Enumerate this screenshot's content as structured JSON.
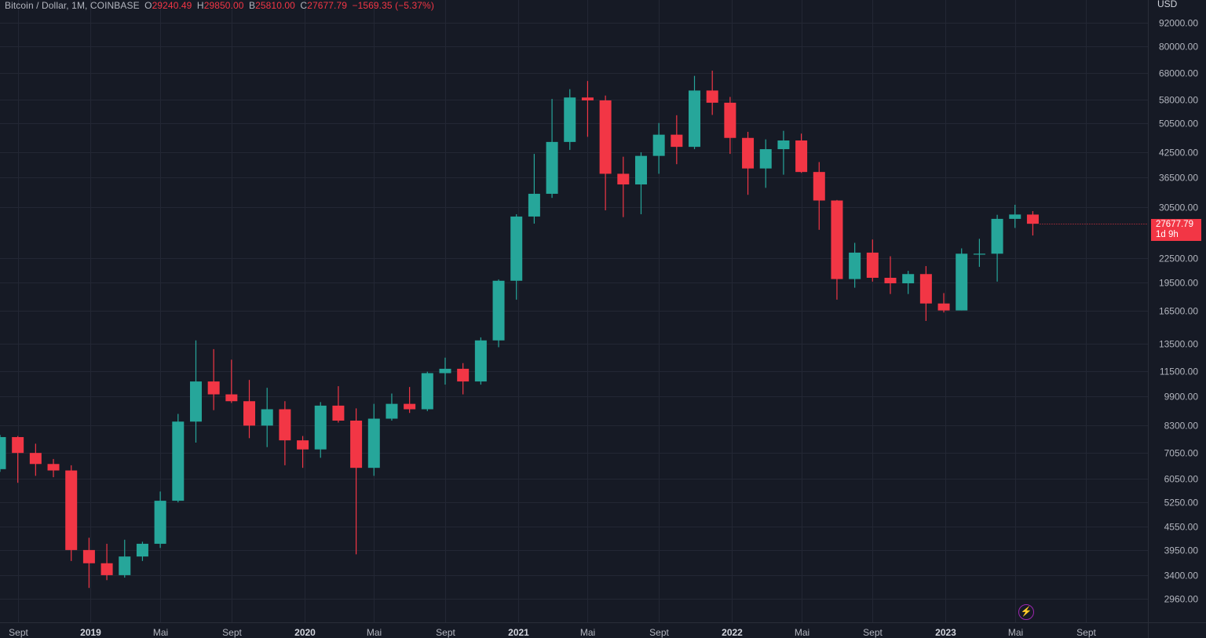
{
  "legend": {
    "symbol": "Bitcoin / Dollar, 1M, COINBASE",
    "open_label": "O",
    "open": "29240.49",
    "high_label": "H",
    "high": "29850.00",
    "low_label": "B",
    "low": "25810.00",
    "close_label": "C",
    "close": "27677.79",
    "change": "−1569.35 (−5.37%)"
  },
  "axis": {
    "unit": "USD"
  },
  "last_price": {
    "value": "27677.79",
    "countdown": "1d 9h"
  },
  "colors": {
    "up": "#26a69a",
    "down": "#f23645",
    "background": "#161a25",
    "grid": "#232734",
    "text": "#b2b5be",
    "accent": "#9c27b0"
  },
  "icons": {
    "bottom_marker": "lightning-icon"
  },
  "chart_data": {
    "type": "candlestick",
    "scale": "log",
    "grid": true,
    "y_ticks": [
      2960,
      3400,
      3950,
      4550,
      5250,
      6050,
      7050,
      8300,
      9900,
      11500,
      13500,
      16500,
      19500,
      22500,
      30500,
      36500,
      42500,
      50500,
      58000,
      68000,
      80000,
      92000
    ],
    "y_tick_labels": [
      "2960.00",
      "3400.00",
      "3950.00",
      "4550.00",
      "5250.00",
      "6050.00",
      "7050.00",
      "8300.00",
      "9900.00",
      "11500.00",
      "13500.00",
      "16500.00",
      "19500.00",
      "22500.00",
      "30500.00",
      "36500.00",
      "42500.00",
      "50500.00",
      "58000.00",
      "68000.00",
      "80000.00",
      "92000.00"
    ],
    "x_labels": [
      {
        "index": 1,
        "text": "Sept",
        "bold": false
      },
      {
        "index": 5,
        "text": "2019",
        "bold": true
      },
      {
        "index": 9,
        "text": "Mai",
        "bold": false
      },
      {
        "index": 13,
        "text": "Sept",
        "bold": false
      },
      {
        "index": 17,
        "text": "2020",
        "bold": true
      },
      {
        "index": 21,
        "text": "Mai",
        "bold": false
      },
      {
        "index": 25,
        "text": "Sept",
        "bold": false
      },
      {
        "index": 29,
        "text": "2021",
        "bold": true
      },
      {
        "index": 33,
        "text": "Mai",
        "bold": false
      },
      {
        "index": 37,
        "text": "Sept",
        "bold": false
      },
      {
        "index": 41,
        "text": "2022",
        "bold": true
      },
      {
        "index": 45,
        "text": "Mai",
        "bold": false
      },
      {
        "index": 49,
        "text": "Sept",
        "bold": false
      },
      {
        "index": 53,
        "text": "2023",
        "bold": true
      },
      {
        "index": 57,
        "text": "Mai",
        "bold": false
      },
      {
        "index": 61,
        "text": "Sept",
        "bold": false
      }
    ],
    "candles": [
      {
        "o": 6400,
        "h": 7850,
        "l": 6300,
        "c": 7750
      },
      {
        "o": 7750,
        "h": 7800,
        "l": 5900,
        "c": 7050
      },
      {
        "o": 7050,
        "h": 7450,
        "l": 6150,
        "c": 6600
      },
      {
        "o": 6600,
        "h": 6800,
        "l": 6100,
        "c": 6350
      },
      {
        "o": 6350,
        "h": 6550,
        "l": 3700,
        "c": 3950
      },
      {
        "o": 3950,
        "h": 4250,
        "l": 3150,
        "c": 3650
      },
      {
        "o": 3650,
        "h": 4100,
        "l": 3300,
        "c": 3400
      },
      {
        "o": 3400,
        "h": 4200,
        "l": 3350,
        "c": 3800
      },
      {
        "o": 3800,
        "h": 4150,
        "l": 3700,
        "c": 4100
      },
      {
        "o": 4100,
        "h": 5600,
        "l": 4000,
        "c": 5300
      },
      {
        "o": 5300,
        "h": 8900,
        "l": 5250,
        "c": 8500
      },
      {
        "o": 8500,
        "h": 13800,
        "l": 7500,
        "c": 10800
      },
      {
        "o": 10800,
        "h": 13100,
        "l": 9100,
        "c": 10000
      },
      {
        "o": 10000,
        "h": 12300,
        "l": 9500,
        "c": 9600
      },
      {
        "o": 9600,
        "h": 10900,
        "l": 7700,
        "c": 8300
      },
      {
        "o": 8300,
        "h": 10400,
        "l": 7300,
        "c": 9150
      },
      {
        "o": 9150,
        "h": 9600,
        "l": 6550,
        "c": 7600
      },
      {
        "o": 7600,
        "h": 7800,
        "l": 6450,
        "c": 7200
      },
      {
        "o": 7200,
        "h": 9550,
        "l": 6850,
        "c": 9350
      },
      {
        "o": 9350,
        "h": 10500,
        "l": 8450,
        "c": 8550
      },
      {
        "o": 8550,
        "h": 9200,
        "l": 3850,
        "c": 6450
      },
      {
        "o": 6450,
        "h": 9450,
        "l": 6150,
        "c": 8650
      },
      {
        "o": 8650,
        "h": 10050,
        "l": 8550,
        "c": 9450
      },
      {
        "o": 9450,
        "h": 10450,
        "l": 8950,
        "c": 9150
      },
      {
        "o": 9150,
        "h": 11450,
        "l": 9050,
        "c": 11350
      },
      {
        "o": 11350,
        "h": 12450,
        "l": 10600,
        "c": 11650
      },
      {
        "o": 11650,
        "h": 12050,
        "l": 10000,
        "c": 10800
      },
      {
        "o": 10800,
        "h": 14050,
        "l": 10600,
        "c": 13800
      },
      {
        "o": 13800,
        "h": 19850,
        "l": 13250,
        "c": 19700
      },
      {
        "o": 19700,
        "h": 29300,
        "l": 17600,
        "c": 28900
      },
      {
        "o": 28900,
        "h": 42000,
        "l": 27700,
        "c": 33100
      },
      {
        "o": 33100,
        "h": 58300,
        "l": 32300,
        "c": 45100
      },
      {
        "o": 45100,
        "h": 61800,
        "l": 43000,
        "c": 58800
      },
      {
        "o": 58800,
        "h": 64900,
        "l": 46500,
        "c": 57800
      },
      {
        "o": 57800,
        "h": 59500,
        "l": 30000,
        "c": 37300
      },
      {
        "o": 37300,
        "h": 41300,
        "l": 28800,
        "c": 35000
      },
      {
        "o": 35000,
        "h": 42400,
        "l": 29300,
        "c": 41500
      },
      {
        "o": 41500,
        "h": 50500,
        "l": 37300,
        "c": 47100
      },
      {
        "o": 47100,
        "h": 52900,
        "l": 39500,
        "c": 43800
      },
      {
        "o": 43800,
        "h": 66900,
        "l": 43200,
        "c": 61300
      },
      {
        "o": 61300,
        "h": 69000,
        "l": 53000,
        "c": 57000
      },
      {
        "o": 57000,
        "h": 59000,
        "l": 42000,
        "c": 46200
      },
      {
        "o": 46200,
        "h": 47900,
        "l": 32900,
        "c": 38500
      },
      {
        "o": 38500,
        "h": 45800,
        "l": 34300,
        "c": 43200
      },
      {
        "o": 43200,
        "h": 48200,
        "l": 37100,
        "c": 45500
      },
      {
        "o": 45500,
        "h": 47400,
        "l": 37500,
        "c": 37700
      },
      {
        "o": 37700,
        "h": 40000,
        "l": 26700,
        "c": 31800
      },
      {
        "o": 31800,
        "h": 31900,
        "l": 17600,
        "c": 19900
      },
      {
        "o": 19900,
        "h": 24700,
        "l": 18900,
        "c": 23300
      },
      {
        "o": 23300,
        "h": 25200,
        "l": 19600,
        "c": 20050
      },
      {
        "o": 20050,
        "h": 22800,
        "l": 18200,
        "c": 19400
      },
      {
        "o": 19400,
        "h": 20900,
        "l": 18200,
        "c": 20500
      },
      {
        "o": 20500,
        "h": 21500,
        "l": 15500,
        "c": 17200
      },
      {
        "o": 17200,
        "h": 18300,
        "l": 16300,
        "c": 16500
      },
      {
        "o": 16500,
        "h": 23900,
        "l": 16500,
        "c": 23150
      },
      {
        "o": 23150,
        "h": 25300,
        "l": 21400,
        "c": 23150
      },
      {
        "o": 23150,
        "h": 29200,
        "l": 19600,
        "c": 28500
      },
      {
        "o": 28500,
        "h": 31000,
        "l": 27000,
        "c": 29250
      },
      {
        "o": 29240.49,
        "h": 29850,
        "l": 25810,
        "c": 27677.79
      }
    ]
  }
}
